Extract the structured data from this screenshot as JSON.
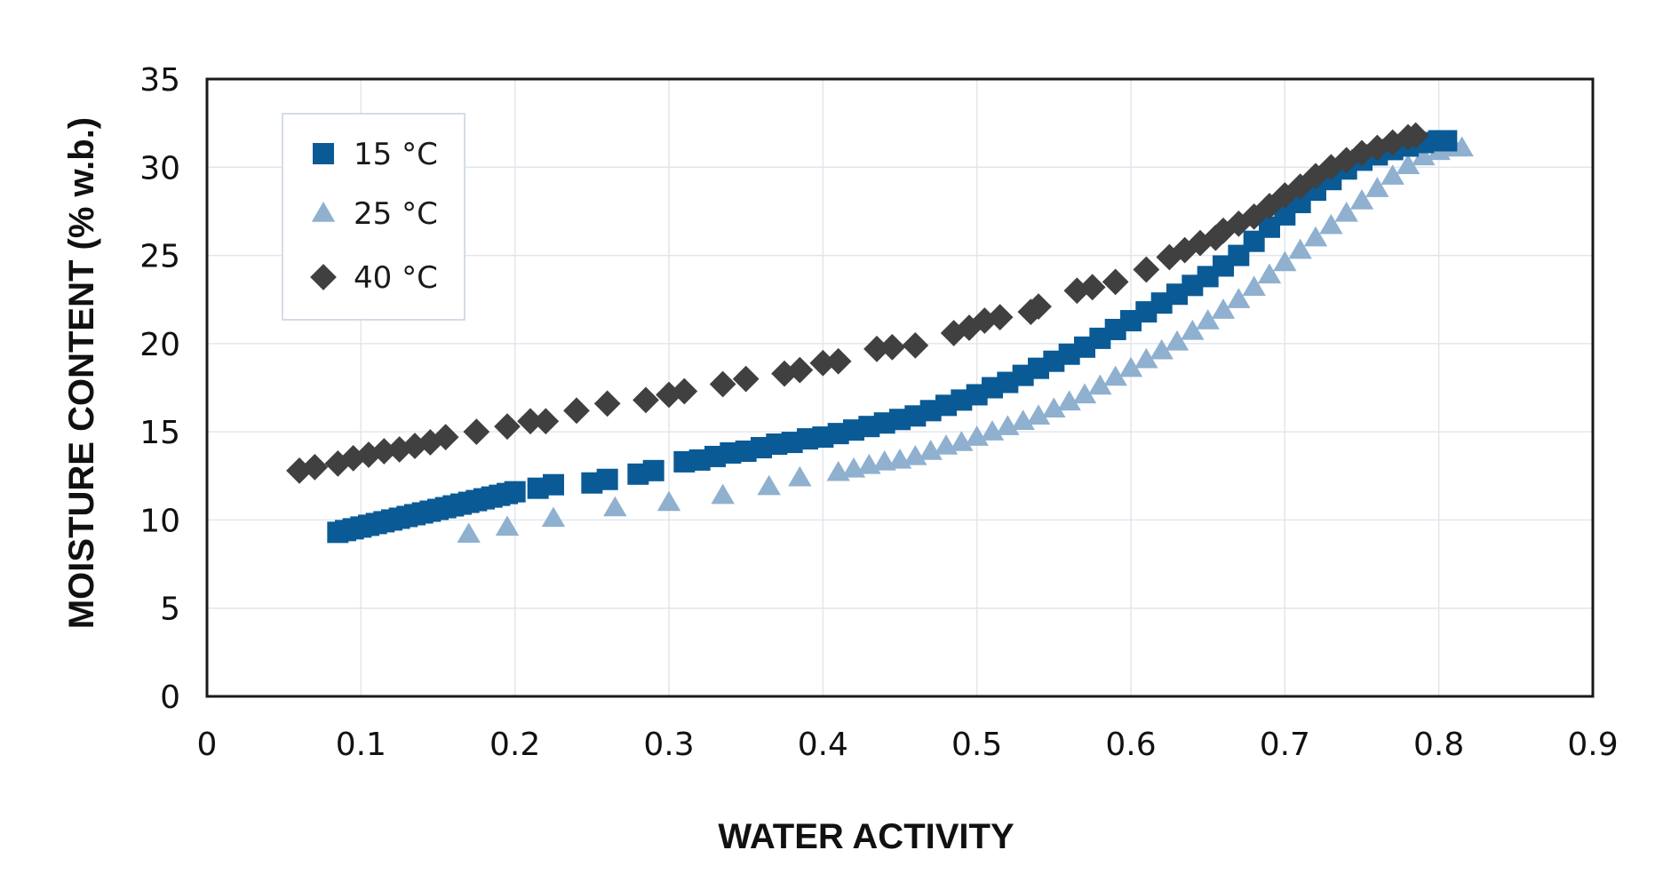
{
  "chart_data": {
    "type": "scatter",
    "title": "",
    "xlabel": "WATER ACTIVITY",
    "ylabel": "MOISTURE CONTENT (% w.b.)",
    "xlim": [
      0,
      0.9
    ],
    "ylim": [
      0,
      35
    ],
    "xticks": [
      0,
      0.1,
      0.2,
      0.3,
      0.4,
      0.5,
      0.6,
      0.7,
      0.8,
      0.9
    ],
    "xtick_labels": [
      "0",
      "0.1",
      "0.2",
      "0.3",
      "0.4",
      "0.5",
      "0.6",
      "0.7",
      "0.8",
      "0.9"
    ],
    "yticks": [
      0,
      5,
      10,
      15,
      20,
      25,
      30,
      35
    ],
    "ytick_labels": [
      "0",
      "5",
      "10",
      "15",
      "20",
      "25",
      "30",
      "35"
    ],
    "grid": true,
    "legend_position": "top-left",
    "series": [
      {
        "name": "15 °C",
        "marker": "square",
        "color": "#0a5a96",
        "points": [
          [
            0.085,
            9.3
          ],
          [
            0.09,
            9.4
          ],
          [
            0.095,
            9.5
          ],
          [
            0.1,
            9.6
          ],
          [
            0.105,
            9.7
          ],
          [
            0.11,
            9.8
          ],
          [
            0.115,
            9.9
          ],
          [
            0.12,
            10.0
          ],
          [
            0.125,
            10.1
          ],
          [
            0.13,
            10.2
          ],
          [
            0.135,
            10.3
          ],
          [
            0.14,
            10.4
          ],
          [
            0.145,
            10.5
          ],
          [
            0.15,
            10.6
          ],
          [
            0.155,
            10.7
          ],
          [
            0.16,
            10.8
          ],
          [
            0.165,
            10.9
          ],
          [
            0.17,
            11.0
          ],
          [
            0.175,
            11.1
          ],
          [
            0.18,
            11.2
          ],
          [
            0.185,
            11.3
          ],
          [
            0.19,
            11.4
          ],
          [
            0.195,
            11.5
          ],
          [
            0.2,
            11.6
          ],
          [
            0.215,
            11.8
          ],
          [
            0.225,
            12.0
          ],
          [
            0.25,
            12.1
          ],
          [
            0.26,
            12.3
          ],
          [
            0.28,
            12.6
          ],
          [
            0.29,
            12.8
          ],
          [
            0.31,
            13.3
          ],
          [
            0.32,
            13.4
          ],
          [
            0.33,
            13.6
          ],
          [
            0.34,
            13.8
          ],
          [
            0.35,
            13.9
          ],
          [
            0.36,
            14.1
          ],
          [
            0.37,
            14.3
          ],
          [
            0.38,
            14.4
          ],
          [
            0.39,
            14.6
          ],
          [
            0.4,
            14.7
          ],
          [
            0.41,
            14.9
          ],
          [
            0.42,
            15.1
          ],
          [
            0.43,
            15.3
          ],
          [
            0.44,
            15.5
          ],
          [
            0.45,
            15.7
          ],
          [
            0.46,
            15.9
          ],
          [
            0.47,
            16.2
          ],
          [
            0.48,
            16.5
          ],
          [
            0.49,
            16.8
          ],
          [
            0.5,
            17.1
          ],
          [
            0.51,
            17.5
          ],
          [
            0.52,
            17.8
          ],
          [
            0.53,
            18.2
          ],
          [
            0.54,
            18.6
          ],
          [
            0.55,
            19.0
          ],
          [
            0.56,
            19.4
          ],
          [
            0.57,
            19.8
          ],
          [
            0.58,
            20.3
          ],
          [
            0.59,
            20.8
          ],
          [
            0.6,
            21.3
          ],
          [
            0.61,
            21.8
          ],
          [
            0.62,
            22.3
          ],
          [
            0.63,
            22.8
          ],
          [
            0.64,
            23.3
          ],
          [
            0.65,
            23.8
          ],
          [
            0.66,
            24.4
          ],
          [
            0.67,
            25.0
          ],
          [
            0.68,
            25.8
          ],
          [
            0.69,
            26.6
          ],
          [
            0.7,
            27.3
          ],
          [
            0.71,
            28.0
          ],
          [
            0.72,
            28.7
          ],
          [
            0.73,
            29.3
          ],
          [
            0.74,
            29.9
          ],
          [
            0.75,
            30.4
          ],
          [
            0.76,
            30.7
          ],
          [
            0.77,
            31.0
          ],
          [
            0.78,
            31.2
          ],
          [
            0.79,
            31.4
          ],
          [
            0.8,
            31.5
          ],
          [
            0.805,
            31.5
          ]
        ]
      },
      {
        "name": "25 °C",
        "marker": "triangle",
        "color": "#8fb0cf",
        "points": [
          [
            0.17,
            9.2
          ],
          [
            0.195,
            9.6
          ],
          [
            0.225,
            10.1
          ],
          [
            0.265,
            10.7
          ],
          [
            0.3,
            11.0
          ],
          [
            0.335,
            11.4
          ],
          [
            0.365,
            11.9
          ],
          [
            0.385,
            12.4
          ],
          [
            0.41,
            12.7
          ],
          [
            0.42,
            12.9
          ],
          [
            0.43,
            13.1
          ],
          [
            0.44,
            13.3
          ],
          [
            0.45,
            13.4
          ],
          [
            0.46,
            13.6
          ],
          [
            0.47,
            13.9
          ],
          [
            0.48,
            14.2
          ],
          [
            0.49,
            14.4
          ],
          [
            0.5,
            14.7
          ],
          [
            0.51,
            15.0
          ],
          [
            0.52,
            15.3
          ],
          [
            0.53,
            15.6
          ],
          [
            0.54,
            15.9
          ],
          [
            0.55,
            16.3
          ],
          [
            0.56,
            16.7
          ],
          [
            0.57,
            17.1
          ],
          [
            0.58,
            17.6
          ],
          [
            0.59,
            18.1
          ],
          [
            0.6,
            18.6
          ],
          [
            0.61,
            19.1
          ],
          [
            0.62,
            19.6
          ],
          [
            0.63,
            20.1
          ],
          [
            0.64,
            20.7
          ],
          [
            0.65,
            21.3
          ],
          [
            0.66,
            21.9
          ],
          [
            0.67,
            22.5
          ],
          [
            0.68,
            23.2
          ],
          [
            0.69,
            23.9
          ],
          [
            0.7,
            24.6
          ],
          [
            0.71,
            25.3
          ],
          [
            0.72,
            26.0
          ],
          [
            0.73,
            26.7
          ],
          [
            0.74,
            27.4
          ],
          [
            0.75,
            28.1
          ],
          [
            0.76,
            28.8
          ],
          [
            0.77,
            29.5
          ],
          [
            0.78,
            30.1
          ],
          [
            0.79,
            30.6
          ],
          [
            0.8,
            30.9
          ],
          [
            0.81,
            31.1
          ],
          [
            0.815,
            31.1
          ]
        ]
      },
      {
        "name": "40 °C",
        "marker": "diamond",
        "color": "#404040",
        "points": [
          [
            0.06,
            12.8
          ],
          [
            0.07,
            13.0
          ],
          [
            0.085,
            13.2
          ],
          [
            0.095,
            13.5
          ],
          [
            0.105,
            13.7
          ],
          [
            0.115,
            13.9
          ],
          [
            0.125,
            14.0
          ],
          [
            0.135,
            14.2
          ],
          [
            0.145,
            14.4
          ],
          [
            0.155,
            14.7
          ],
          [
            0.175,
            15.0
          ],
          [
            0.195,
            15.3
          ],
          [
            0.21,
            15.6
          ],
          [
            0.22,
            15.6
          ],
          [
            0.24,
            16.2
          ],
          [
            0.26,
            16.6
          ],
          [
            0.285,
            16.8
          ],
          [
            0.3,
            17.1
          ],
          [
            0.31,
            17.3
          ],
          [
            0.335,
            17.7
          ],
          [
            0.35,
            18.0
          ],
          [
            0.375,
            18.3
          ],
          [
            0.385,
            18.5
          ],
          [
            0.4,
            18.9
          ],
          [
            0.41,
            19.0
          ],
          [
            0.435,
            19.7
          ],
          [
            0.445,
            19.8
          ],
          [
            0.46,
            19.9
          ],
          [
            0.485,
            20.6
          ],
          [
            0.495,
            20.9
          ],
          [
            0.505,
            21.3
          ],
          [
            0.515,
            21.5
          ],
          [
            0.535,
            21.8
          ],
          [
            0.54,
            22.1
          ],
          [
            0.565,
            23.0
          ],
          [
            0.575,
            23.2
          ],
          [
            0.59,
            23.5
          ],
          [
            0.61,
            24.2
          ],
          [
            0.625,
            24.9
          ],
          [
            0.635,
            25.3
          ],
          [
            0.645,
            25.7
          ],
          [
            0.655,
            26.0
          ],
          [
            0.66,
            26.4
          ],
          [
            0.67,
            26.8
          ],
          [
            0.68,
            27.2
          ],
          [
            0.69,
            27.8
          ],
          [
            0.7,
            28.4
          ],
          [
            0.71,
            28.9
          ],
          [
            0.72,
            29.5
          ],
          [
            0.73,
            30.0
          ],
          [
            0.74,
            30.4
          ],
          [
            0.75,
            30.8
          ],
          [
            0.76,
            31.1
          ],
          [
            0.77,
            31.4
          ],
          [
            0.78,
            31.7
          ],
          [
            0.785,
            31.8
          ]
        ]
      }
    ]
  }
}
